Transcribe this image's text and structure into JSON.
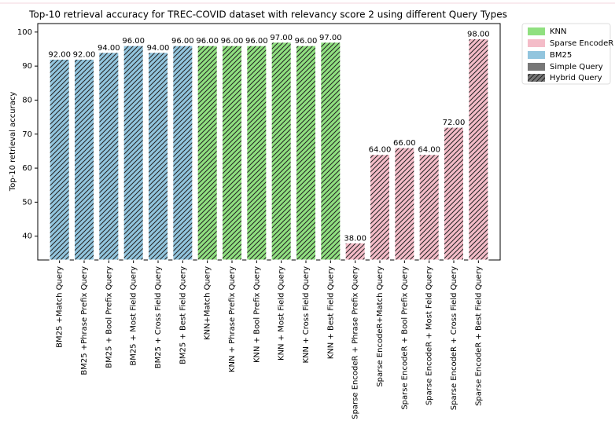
{
  "chart_data": {
    "type": "bar",
    "title": "Top-10 retrieval accuracy for TREC-COVID dataset with relevancy score 2 using different Query Types",
    "y_label": "Top-10 retrieval accuracy",
    "categories": [
      "BM25 +Match Query",
      "BM25 +Phrase Prefix Query",
      "BM25 + Bool Prefix Query",
      "BM25 + Most Field Query",
      "BM25 + Cross Field Query",
      "BM25 + Best Field Query",
      "KNN+Match Query",
      "KNN + Phrase Prefix Query",
      "KNN + Bool Prefix Query",
      "KNN + Most  Field Query",
      "KNN + Cross Field Query",
      "KNN +  Best Field Query",
      "Sparse EncodeR + Phrase Prefix Query",
      "Sparse EncodeR+Match Query",
      "Sparse EncodeR + Bool Prefix Query",
      "Sparse EncodeR + Most  Feld Query",
      "Sparse EncodeR + Cross Field Query",
      "Sparse EncodeR + Best Field Query"
    ],
    "series": [
      {
        "name": "KNN",
        "color": "#90e080",
        "hatch": "////",
        "values": [
          null,
          null,
          null,
          null,
          null,
          null,
          96,
          96,
          96,
          97,
          96,
          97,
          null,
          null,
          null,
          null,
          null,
          null
        ],
        "value_labels": [
          null,
          null,
          null,
          null,
          null,
          null,
          "96.00",
          "96.00",
          "96.00",
          "97.00",
          "96.00",
          "97.00",
          null,
          null,
          null,
          null,
          null,
          null
        ]
      },
      {
        "name": "Sparse EncodeR",
        "color": "#f4bcc8",
        "hatch": "////",
        "values": [
          null,
          null,
          null,
          null,
          null,
          null,
          null,
          null,
          null,
          null,
          null,
          null,
          38,
          64,
          66,
          64,
          72,
          98
        ],
        "value_labels": [
          null,
          null,
          null,
          null,
          null,
          null,
          null,
          null,
          null,
          null,
          null,
          null,
          "38.00",
          "64.00",
          "66.00",
          "64.00",
          "72.00",
          "98.00"
        ]
      },
      {
        "name": "BM25",
        "color": "#92c5de",
        "hatch": "////",
        "values": [
          92,
          92,
          94,
          96,
          94,
          96,
          null,
          null,
          null,
          null,
          null,
          null,
          null,
          null,
          null,
          null,
          null,
          null
        ],
        "value_labels": [
          "92.00",
          "92.00",
          "94.00",
          "96.00",
          "94.00",
          "96.00",
          null,
          null,
          null,
          null,
          null,
          null,
          null,
          null,
          null,
          null,
          null,
          null
        ]
      }
    ],
    "style_legend": [
      {
        "name": "Simple Query",
        "color": "#777777"
      },
      {
        "name": "Hybrid Query",
        "color": "#777777",
        "hatch": "////"
      }
    ],
    "ylim": [
      33,
      102.5
    ],
    "yticks": [
      40,
      50,
      60,
      70,
      80,
      90,
      100
    ],
    "grid": false,
    "legend": "outside-upper-right"
  }
}
